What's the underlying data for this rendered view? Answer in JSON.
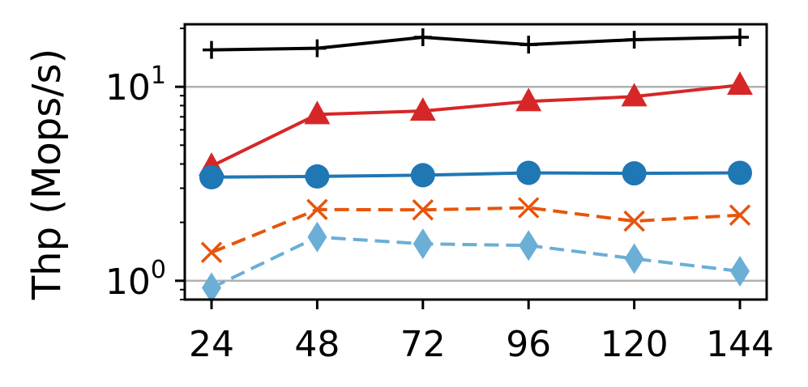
{
  "chart_data": {
    "type": "line",
    "title": "",
    "xlabel": "",
    "ylabel": "Thp (Mops/s)",
    "x": [
      24,
      48,
      72,
      96,
      120,
      144
    ],
    "x_tick_labels": [
      "24",
      "48",
      "72",
      "96",
      "120",
      "144"
    ],
    "y_scale": "log",
    "ylim": [
      0.8,
      21
    ],
    "y_ticks": [
      {
        "value": 1,
        "base": "10",
        "exp": "0"
      },
      {
        "value": 10,
        "base": "10",
        "exp": "1"
      }
    ],
    "grid": "horizontal-major",
    "legend": "none",
    "series": [
      {
        "color": "#000000",
        "marker": "plus",
        "dash": "solid",
        "values": [
          15.5,
          15.8,
          18.0,
          16.5,
          17.5,
          18.0
        ]
      },
      {
        "color": "#d62728",
        "marker": "triangle",
        "dash": "solid",
        "values": [
          3.9,
          7.2,
          7.5,
          8.4,
          8.9,
          10.2
        ]
      },
      {
        "color": "#1f77b4",
        "marker": "circle",
        "dash": "solid",
        "values": [
          3.42,
          3.45,
          3.5,
          3.6,
          3.58,
          3.6
        ]
      },
      {
        "color": "#e6550d",
        "marker": "x",
        "dash": "dashed",
        "values": [
          1.4,
          2.33,
          2.32,
          2.38,
          2.03,
          2.18
        ]
      },
      {
        "color": "#6baed6",
        "marker": "diamond",
        "dash": "dashed",
        "values": [
          0.92,
          1.68,
          1.55,
          1.52,
          1.3,
          1.12
        ]
      }
    ]
  }
}
